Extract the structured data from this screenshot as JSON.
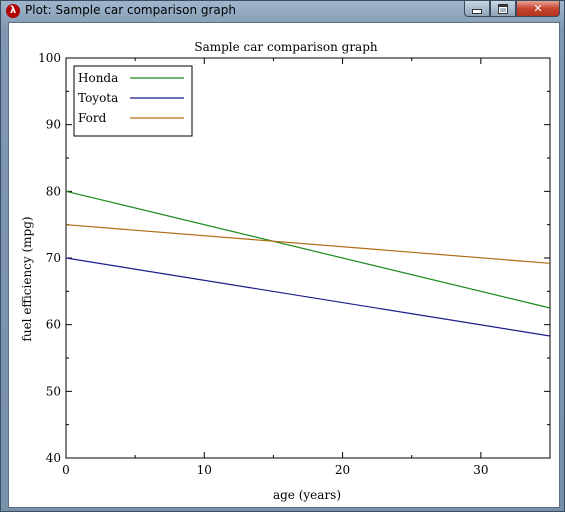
{
  "window": {
    "title": "Plot: Sample car comparison graph",
    "app_icon_glyph": "λ",
    "close_glyph": "✕"
  },
  "chart_data": {
    "type": "line",
    "title": "Sample car comparison graph",
    "xlabel": "age (years)",
    "ylabel": "fuel efficiency (mpg)",
    "xlim": [
      0,
      35
    ],
    "ylim": [
      40,
      100
    ],
    "xticks": [
      0,
      10,
      20,
      30
    ],
    "yticks": [
      40,
      50,
      60,
      70,
      80,
      90,
      100
    ],
    "grid": false,
    "legend_position": "top-left",
    "series": [
      {
        "name": "Honda",
        "color": "#1a8a1a",
        "x": [
          0,
          35
        ],
        "y": [
          80,
          62.5
        ]
      },
      {
        "name": "Toyota",
        "color": "#1c1c8c",
        "x": [
          0,
          35
        ],
        "y": [
          70,
          58.3
        ]
      },
      {
        "name": "Ford",
        "color": "#b06a10",
        "x": [
          0,
          35
        ],
        "y": [
          75,
          69.2
        ]
      }
    ]
  }
}
